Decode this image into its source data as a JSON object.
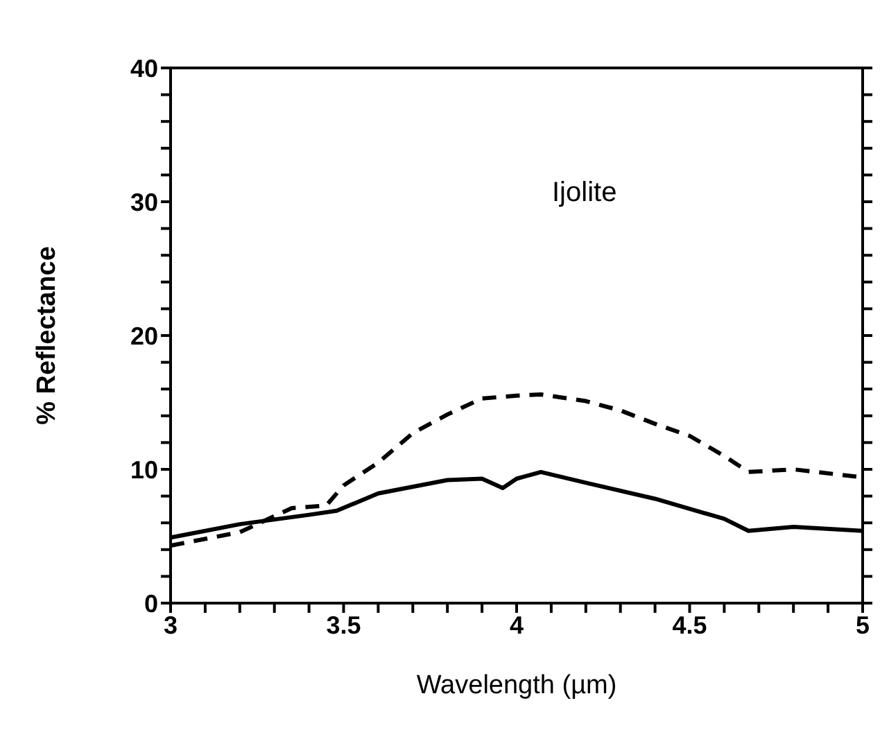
{
  "chart_data": {
    "type": "line",
    "xlabel": "Wavelength  (µm)",
    "ylabel": "% Reflectance",
    "annotations": [
      "Ijolite"
    ],
    "xlim": [
      3,
      5
    ],
    "ylim": [
      0,
      40
    ],
    "xticks": [
      3,
      {
        "value": 3.1,
        "label": null
      },
      {
        "value": 3.2,
        "label": null
      },
      {
        "value": 3.3,
        "label": null
      },
      {
        "value": 3.4,
        "label": null
      },
      3.5,
      {
        "value": 3.6,
        "label": null
      },
      {
        "value": 3.7,
        "label": null
      },
      {
        "value": 3.8,
        "label": null
      },
      {
        "value": 3.9,
        "label": null
      },
      4,
      {
        "value": 4.1,
        "label": null
      },
      {
        "value": 4.2,
        "label": null
      },
      {
        "value": 4.3,
        "label": null
      },
      {
        "value": 4.4,
        "label": null
      },
      4.5,
      {
        "value": 4.6,
        "label": null
      },
      {
        "value": 4.7,
        "label": null
      },
      {
        "value": 4.8,
        "label": null
      },
      {
        "value": 4.9,
        "label": null
      },
      5
    ],
    "yticks": [
      0,
      {
        "value": 2,
        "label": null
      },
      {
        "value": 4,
        "label": null
      },
      {
        "value": 6,
        "label": null
      },
      {
        "value": 8,
        "label": null
      },
      10,
      {
        "value": 12,
        "label": null
      },
      {
        "value": 14,
        "label": null
      },
      {
        "value": 16,
        "label": null
      },
      {
        "value": 18,
        "label": null
      },
      20,
      {
        "value": 22,
        "label": null
      },
      {
        "value": 24,
        "label": null
      },
      {
        "value": 26,
        "label": null
      },
      {
        "value": 28,
        "label": null
      },
      30,
      {
        "value": 32,
        "label": null
      },
      {
        "value": 34,
        "label": null
      },
      {
        "value": 36,
        "label": null
      },
      {
        "value": 38,
        "label": null
      },
      40
    ],
    "grid": false,
    "legend": false,
    "marker": "none",
    "series": [
      {
        "color": "#000000",
        "line_style": "solid",
        "x": [
          3.0,
          3.2,
          3.4,
          3.48,
          3.6,
          3.8,
          3.9,
          3.96,
          4.0,
          4.07,
          4.2,
          4.4,
          4.6,
          4.67,
          4.8,
          5.0
        ],
        "values": [
          4.9,
          5.9,
          6.6,
          6.9,
          8.2,
          9.2,
          9.3,
          8.6,
          9.3,
          9.8,
          9.0,
          7.8,
          6.3,
          5.4,
          5.7,
          5.4
        ]
      },
      {
        "color": "#000000",
        "line_style": "dashed",
        "x": [
          3.0,
          3.2,
          3.35,
          3.45,
          3.5,
          3.6,
          3.7,
          3.8,
          3.9,
          4.0,
          4.07,
          4.2,
          4.3,
          4.4,
          4.5,
          4.6,
          4.67,
          4.8,
          5.0
        ],
        "values": [
          4.3,
          5.3,
          7.1,
          7.3,
          8.8,
          10.5,
          12.7,
          14.1,
          15.3,
          15.5,
          15.6,
          15.1,
          14.4,
          13.4,
          12.5,
          11.0,
          9.8,
          10.0,
          9.4
        ]
      }
    ]
  }
}
